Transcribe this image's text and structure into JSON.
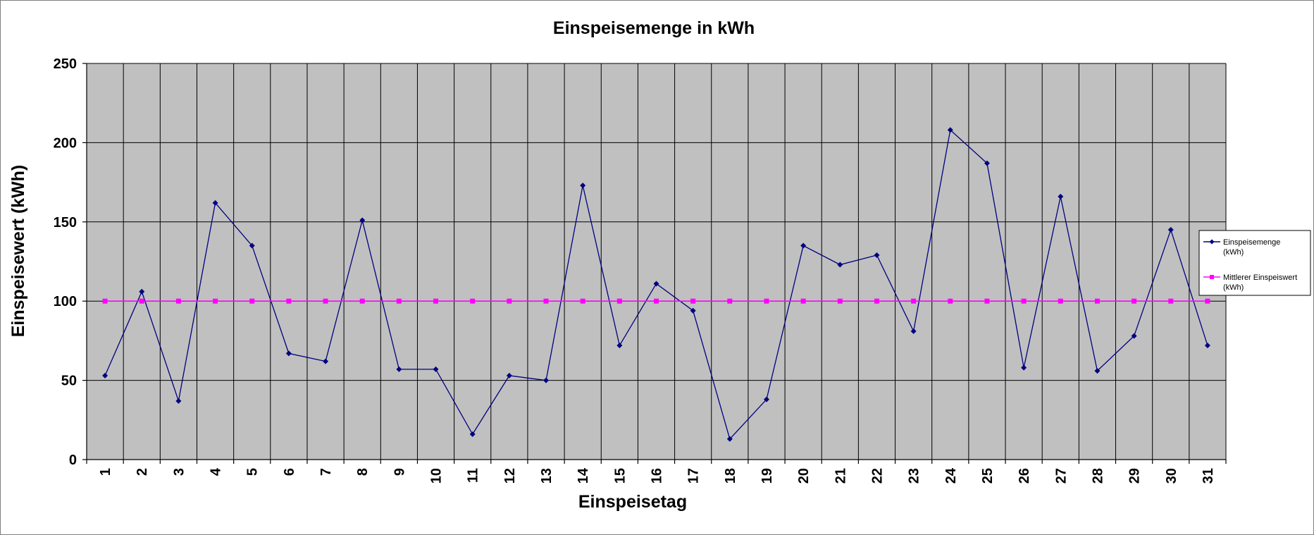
{
  "chart_data": {
    "type": "line",
    "title": "Einspeisemenge in kWh",
    "xlabel": "Einspeisetag",
    "ylabel": "Einspeisewert  (kWh)",
    "categories": [
      "1",
      "2",
      "3",
      "4",
      "5",
      "6",
      "7",
      "8",
      "9",
      "10",
      "11",
      "12",
      "13",
      "14",
      "15",
      "16",
      "17",
      "18",
      "19",
      "20",
      "21",
      "22",
      "23",
      "24",
      "25",
      "26",
      "27",
      "28",
      "29",
      "30",
      "31"
    ],
    "ylim": [
      0,
      250
    ],
    "yticks": [
      0,
      50,
      100,
      150,
      200,
      250
    ],
    "grid": true,
    "legend_position": "right",
    "plot_background": "#c0c0c0",
    "series": [
      {
        "name": "Einspeisemenge (kWh)",
        "legend_lines": [
          "Einspeisemenge",
          "(kWh)"
        ],
        "color": "#000080",
        "marker": "diamond",
        "values": [
          53,
          106,
          37,
          162,
          135,
          67,
          62,
          151,
          57,
          57,
          16,
          53,
          50,
          173,
          72,
          111,
          94,
          13,
          38,
          135,
          123,
          129,
          81,
          208,
          187,
          58,
          166,
          56,
          78,
          145,
          72
        ]
      },
      {
        "name": "Mittlerer Einspeiswert (kWh)",
        "legend_lines": [
          "Mittlerer Einspeiswert",
          "(kWh)"
        ],
        "color": "#ff00ff",
        "marker": "square",
        "values": [
          100,
          100,
          100,
          100,
          100,
          100,
          100,
          100,
          100,
          100,
          100,
          100,
          100,
          100,
          100,
          100,
          100,
          100,
          100,
          100,
          100,
          100,
          100,
          100,
          100,
          100,
          100,
          100,
          100,
          100,
          100
        ]
      }
    ]
  }
}
